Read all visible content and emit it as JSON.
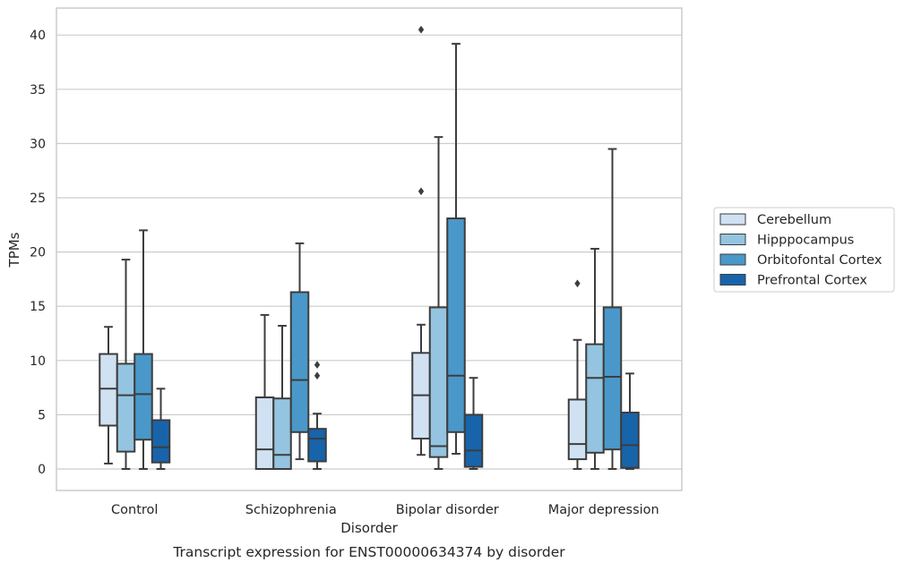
{
  "chart_data": {
    "type": "box",
    "title": "",
    "caption": "Transcript expression for ENST00000634374 by disorder",
    "xlabel": "Disorder",
    "ylabel": "TPMs",
    "ylim": [
      -1.9,
      42.6
    ],
    "yticks": [
      0,
      5,
      10,
      15,
      20,
      25,
      30,
      35,
      40
    ],
    "grid": "horizontal",
    "legend_position": "right-center",
    "categories": [
      "Control",
      "Schizophrenia",
      "Bipolar disorder",
      "Major depression"
    ],
    "series": [
      {
        "name": "Cerebellum",
        "color": "#d0e1f2",
        "boxes": [
          {
            "whislo": 0.5,
            "q1": 4.0,
            "med": 7.4,
            "q3": 10.6,
            "whishi": 13.1,
            "fliers": []
          },
          {
            "whislo": 0.0,
            "q1": 0.0,
            "med": 1.8,
            "q3": 6.6,
            "whishi": 14.2,
            "fliers": []
          },
          {
            "whislo": 1.3,
            "q1": 2.8,
            "med": 6.8,
            "q3": 10.7,
            "whishi": 13.3,
            "fliers": [
              25.6,
              40.5
            ]
          },
          {
            "whislo": 0.0,
            "q1": 0.9,
            "med": 2.3,
            "q3": 6.4,
            "whishi": 11.9,
            "fliers": [
              17.1
            ]
          }
        ]
      },
      {
        "name": "Hipppocampus",
        "color": "#94c4df",
        "boxes": [
          {
            "whislo": 0.0,
            "q1": 1.6,
            "med": 6.8,
            "q3": 9.7,
            "whishi": 19.3,
            "fliers": []
          },
          {
            "whislo": 0.0,
            "q1": 0.0,
            "med": 1.3,
            "q3": 6.5,
            "whishi": 13.2,
            "fliers": []
          },
          {
            "whislo": 0.0,
            "q1": 1.1,
            "med": 2.1,
            "q3": 14.9,
            "whishi": 30.6,
            "fliers": []
          },
          {
            "whislo": 0.0,
            "q1": 1.5,
            "med": 8.4,
            "q3": 11.5,
            "whishi": 20.3,
            "fliers": []
          }
        ]
      },
      {
        "name": "Orbitofontal Cortex",
        "color": "#4a98c9",
        "boxes": [
          {
            "whislo": 0.0,
            "q1": 2.7,
            "med": 6.9,
            "q3": 10.6,
            "whishi": 22.0,
            "fliers": []
          },
          {
            "whislo": 0.9,
            "q1": 3.4,
            "med": 8.2,
            "q3": 16.3,
            "whishi": 20.8,
            "fliers": []
          },
          {
            "whislo": 1.4,
            "q1": 3.4,
            "med": 8.6,
            "q3": 23.1,
            "whishi": 39.2,
            "fliers": []
          },
          {
            "whislo": 0.0,
            "q1": 1.8,
            "med": 8.5,
            "q3": 14.9,
            "whishi": 29.5,
            "fliers": []
          }
        ]
      },
      {
        "name": "Prefrontal Cortex",
        "color": "#1764ab",
        "boxes": [
          {
            "whislo": 0.0,
            "q1": 0.6,
            "med": 2.0,
            "q3": 4.5,
            "whishi": 7.4,
            "fliers": []
          },
          {
            "whislo": 0.0,
            "q1": 0.7,
            "med": 2.8,
            "q3": 3.7,
            "whishi": 5.1,
            "fliers": [
              8.6,
              9.6
            ]
          },
          {
            "whislo": 0.0,
            "q1": 0.2,
            "med": 1.7,
            "q3": 5.0,
            "whishi": 8.4,
            "fliers": []
          },
          {
            "whislo": 0.0,
            "q1": 0.1,
            "med": 2.2,
            "q3": 5.2,
            "whishi": 8.8,
            "fliers": []
          }
        ]
      }
    ]
  }
}
